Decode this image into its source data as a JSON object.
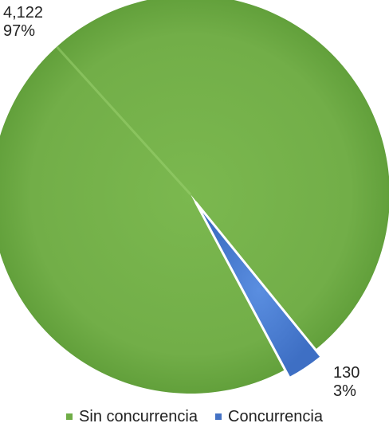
{
  "chart_data": {
    "type": "pie",
    "title": "",
    "categories": [
      "Sin concurrencia",
      "Concurrencia"
    ],
    "values": [
      4122,
      130
    ],
    "percent_labels": [
      "97%",
      "3%"
    ],
    "value_labels": [
      "4,122",
      "130"
    ],
    "colors": [
      "#70ad47",
      "#4472c4"
    ],
    "legend_position": "bottom",
    "start_at_top": false,
    "exploded_slice": "Concurrencia"
  }
}
